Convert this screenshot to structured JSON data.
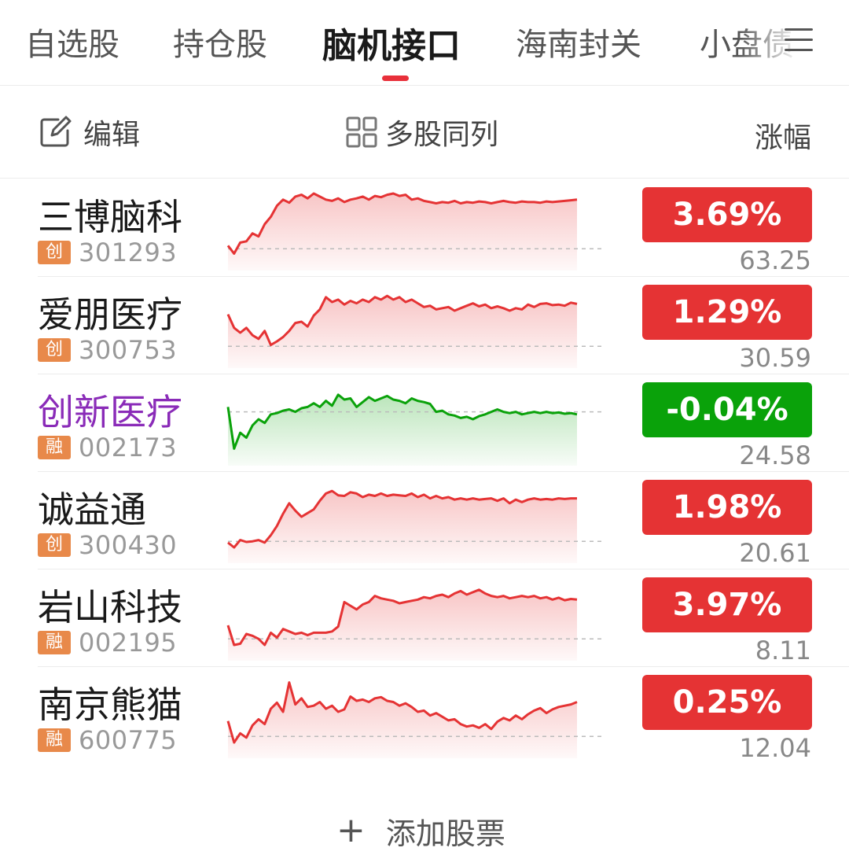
{
  "tabs": [
    {
      "label": "自选股",
      "active": false
    },
    {
      "label": "持仓股",
      "active": false
    },
    {
      "label": "脑机接口",
      "active": true
    },
    {
      "label": "海南封关",
      "active": false
    },
    {
      "label": "小盘债",
      "active": false
    }
  ],
  "toolbar": {
    "edit_label": "编辑",
    "multi_label": "多股同列",
    "change_header": "涨幅"
  },
  "colors": {
    "up": "#e53334",
    "down": "#0aa20a",
    "accent": "#e8303a",
    "badge": "#e8894a"
  },
  "stocks": [
    {
      "name": "三博脑科",
      "badge": "创",
      "code": "301293",
      "change": "3.69%",
      "price": "63.25",
      "direction": "up",
      "spark": [
        0.15,
        0.02,
        0.2,
        0.22,
        0.35,
        0.3,
        0.5,
        0.62,
        0.8,
        0.9,
        0.85,
        0.95,
        0.98,
        0.92,
        1.0,
        0.95,
        0.9,
        0.88,
        0.92,
        0.86,
        0.9,
        0.92,
        0.95,
        0.9,
        0.96,
        0.94,
        0.98,
        1.0,
        0.96,
        0.98,
        0.9,
        0.92,
        0.88,
        0.86,
        0.84,
        0.86,
        0.85,
        0.88,
        0.84,
        0.86,
        0.85,
        0.87,
        0.86,
        0.84,
        0.86,
        0.88,
        0.86,
        0.85,
        0.87,
        0.86,
        0.86,
        0.85,
        0.87,
        0.86,
        0.87,
        0.88,
        0.89,
        0.9
      ]
    },
    {
      "name": "爱朋医疗",
      "badge": "创",
      "code": "300753",
      "change": "1.29%",
      "price": "30.59",
      "direction": "up",
      "spark": [
        0.62,
        0.4,
        0.32,
        0.4,
        0.28,
        0.22,
        0.35,
        0.12,
        0.18,
        0.25,
        0.35,
        0.48,
        0.5,
        0.42,
        0.6,
        0.7,
        0.9,
        0.82,
        0.86,
        0.78,
        0.84,
        0.8,
        0.86,
        0.82,
        0.9,
        0.86,
        0.92,
        0.86,
        0.9,
        0.82,
        0.86,
        0.8,
        0.74,
        0.76,
        0.7,
        0.72,
        0.74,
        0.68,
        0.72,
        0.76,
        0.8,
        0.75,
        0.78,
        0.72,
        0.75,
        0.72,
        0.68,
        0.72,
        0.7,
        0.78,
        0.74,
        0.79,
        0.8,
        0.77,
        0.78,
        0.76,
        0.81,
        0.79
      ]
    },
    {
      "name": "创新医疗",
      "badge": "融",
      "code": "002173",
      "change": "-0.04%",
      "price": "24.58",
      "direction": "down",
      "spark": [
        0.7,
        0.02,
        0.28,
        0.2,
        0.4,
        0.5,
        0.44,
        0.58,
        0.6,
        0.64,
        0.66,
        0.62,
        0.68,
        0.7,
        0.76,
        0.7,
        0.8,
        0.72,
        0.9,
        0.82,
        0.84,
        0.7,
        0.78,
        0.86,
        0.8,
        0.84,
        0.88,
        0.82,
        0.8,
        0.76,
        0.84,
        0.8,
        0.78,
        0.75,
        0.62,
        0.64,
        0.58,
        0.56,
        0.52,
        0.54,
        0.5,
        0.55,
        0.58,
        0.62,
        0.66,
        0.62,
        0.6,
        0.62,
        0.58,
        0.6,
        0.62,
        0.6,
        0.62,
        0.6,
        0.61,
        0.59,
        0.6,
        0.58
      ]
    },
    {
      "name": "诚益通",
      "badge": "创",
      "code": "300430",
      "change": "1.98%",
      "price": "20.61",
      "direction": "up",
      "spark": [
        0.08,
        0.0,
        0.12,
        0.09,
        0.1,
        0.12,
        0.08,
        0.2,
        0.35,
        0.55,
        0.72,
        0.6,
        0.5,
        0.56,
        0.62,
        0.76,
        0.88,
        0.92,
        0.85,
        0.84,
        0.9,
        0.88,
        0.82,
        0.86,
        0.84,
        0.88,
        0.84,
        0.86,
        0.85,
        0.84,
        0.88,
        0.82,
        0.86,
        0.8,
        0.84,
        0.8,
        0.82,
        0.78,
        0.8,
        0.78,
        0.8,
        0.78,
        0.79,
        0.8,
        0.76,
        0.8,
        0.72,
        0.78,
        0.74,
        0.78,
        0.8,
        0.78,
        0.79,
        0.78,
        0.8,
        0.79,
        0.8,
        0.8
      ]
    },
    {
      "name": "岩山科技",
      "badge": "融",
      "code": "002195",
      "change": "3.97%",
      "price": "8.11",
      "direction": "up",
      "spark": [
        0.32,
        0.0,
        0.02,
        0.18,
        0.15,
        0.1,
        0.0,
        0.2,
        0.12,
        0.26,
        0.22,
        0.18,
        0.2,
        0.16,
        0.2,
        0.2,
        0.2,
        0.22,
        0.3,
        0.7,
        0.64,
        0.58,
        0.66,
        0.7,
        0.8,
        0.76,
        0.74,
        0.72,
        0.68,
        0.7,
        0.72,
        0.74,
        0.78,
        0.76,
        0.8,
        0.82,
        0.78,
        0.84,
        0.88,
        0.82,
        0.86,
        0.9,
        0.84,
        0.8,
        0.78,
        0.8,
        0.76,
        0.78,
        0.8,
        0.78,
        0.8,
        0.76,
        0.78,
        0.74,
        0.77,
        0.73,
        0.75,
        0.74
      ]
    },
    {
      "name": "南京熊猫",
      "badge": "融",
      "code": "600775",
      "change": "0.25%",
      "price": "12.04",
      "direction": "up",
      "spark": [
        0.35,
        0.0,
        0.15,
        0.08,
        0.28,
        0.38,
        0.3,
        0.55,
        0.65,
        0.5,
        0.98,
        0.62,
        0.72,
        0.58,
        0.6,
        0.66,
        0.55,
        0.6,
        0.5,
        0.54,
        0.75,
        0.68,
        0.7,
        0.66,
        0.72,
        0.74,
        0.68,
        0.66,
        0.6,
        0.64,
        0.58,
        0.5,
        0.52,
        0.44,
        0.48,
        0.42,
        0.36,
        0.38,
        0.3,
        0.26,
        0.28,
        0.24,
        0.3,
        0.22,
        0.34,
        0.4,
        0.36,
        0.44,
        0.38,
        0.46,
        0.52,
        0.56,
        0.48,
        0.54,
        0.58,
        0.6,
        0.62,
        0.66
      ]
    }
  ],
  "add_stock_label": "添加股票"
}
